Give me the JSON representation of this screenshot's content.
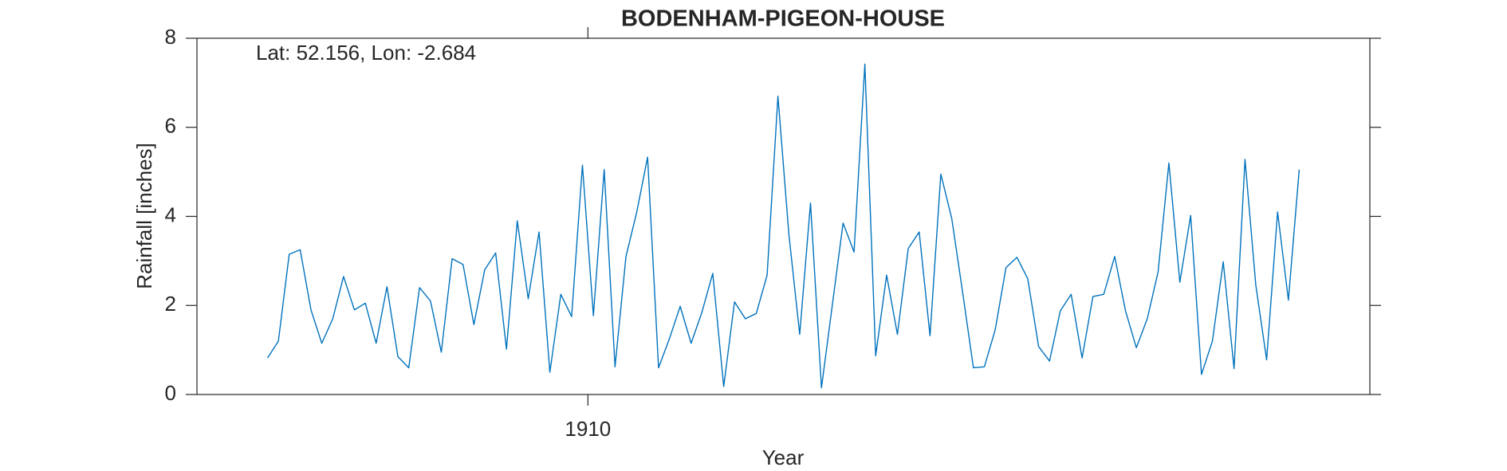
{
  "chart_data": {
    "type": "line",
    "title": "BODENHAM-PIGEON-HOUSE",
    "annotation": "Lat: 52.156, Lon: -2.684",
    "xlabel": "Year",
    "ylabel": "Rainfall [inches]",
    "xlim": [
      1907,
      1916
    ],
    "xticks": [
      1910
    ],
    "ylim": [
      0,
      8
    ],
    "yticks": [
      0,
      2,
      4,
      6,
      8
    ],
    "grid": false,
    "x": [
      1907.542,
      1907.625,
      1907.708,
      1907.792,
      1907.875,
      1907.958,
      1908.042,
      1908.125,
      1908.208,
      1908.292,
      1908.375,
      1908.458,
      1908.542,
      1908.625,
      1908.708,
      1908.792,
      1908.875,
      1908.958,
      1909.042,
      1909.125,
      1909.208,
      1909.292,
      1909.375,
      1909.458,
      1909.542,
      1909.625,
      1909.708,
      1909.792,
      1909.875,
      1909.958,
      1910.042,
      1910.125,
      1910.208,
      1910.292,
      1910.375,
      1910.458,
      1910.542,
      1910.625,
      1910.708,
      1910.792,
      1910.875,
      1910.958,
      1911.042,
      1911.125,
      1911.208,
      1911.292,
      1911.375,
      1911.458,
      1911.542,
      1911.625,
      1911.708,
      1911.792,
      1911.875,
      1911.958,
      1912.042,
      1912.125,
      1912.208,
      1912.292,
      1912.375,
      1912.458,
      1912.542,
      1912.625,
      1912.708,
      1912.792,
      1912.875,
      1912.958,
      1913.042,
      1913.125,
      1913.208,
      1913.292,
      1913.375,
      1913.458,
      1913.542,
      1913.625,
      1913.708,
      1913.792,
      1913.875,
      1913.958,
      1914.042,
      1914.125,
      1914.208,
      1914.292,
      1914.375,
      1914.458,
      1914.542,
      1914.625,
      1914.708,
      1914.792,
      1914.875,
      1914.958,
      1915.042,
      1915.125,
      1915.208,
      1915.292,
      1915.375,
      1915.458
    ],
    "series": [
      {
        "name": "Rainfall",
        "color": "#0072bd",
        "values": [
          0.82,
          1.2,
          3.15,
          3.25,
          1.9,
          1.15,
          1.7,
          2.65,
          1.9,
          2.05,
          1.15,
          2.42,
          0.85,
          0.6,
          2.4,
          2.1,
          0.95,
          3.05,
          2.92,
          1.57,
          2.8,
          3.18,
          1.02,
          3.9,
          2.15,
          3.65,
          0.5,
          2.25,
          1.75,
          5.15,
          1.77,
          5.05,
          0.62,
          3.1,
          4.1,
          5.33,
          0.6,
          1.25,
          1.98,
          1.15,
          1.85,
          2.72,
          0.18,
          2.08,
          1.7,
          1.82,
          2.68,
          6.7,
          3.6,
          1.35,
          4.3,
          0.15,
          2.0,
          3.85,
          3.2,
          7.42,
          0.87,
          2.68,
          1.35,
          3.28,
          3.65,
          1.32,
          4.95,
          3.95,
          2.3,
          0.6,
          0.62,
          1.45,
          2.85,
          3.08,
          2.6,
          1.08,
          0.75,
          1.88,
          2.25,
          0.82,
          2.2,
          2.25,
          3.1,
          1.88,
          1.05,
          1.7,
          2.75,
          5.2,
          2.52,
          4.02,
          0.45,
          1.2,
          2.98,
          0.58,
          5.28,
          2.45,
          0.78,
          4.1,
          2.12,
          5.05
        ]
      }
    ]
  }
}
